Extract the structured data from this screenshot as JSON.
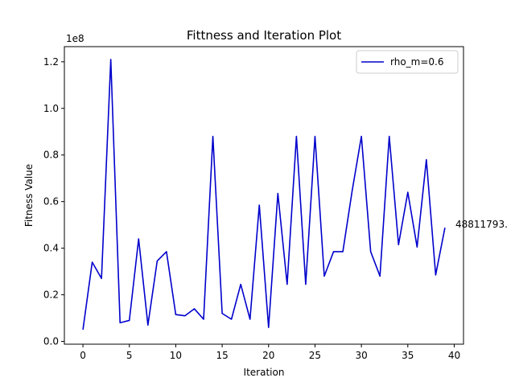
{
  "chart_data": {
    "type": "line",
    "title": "Fittness and Iteration Plot",
    "xlabel": "Iteration",
    "ylabel": "Fitness Value",
    "y_offset_label": "1e8",
    "xlim": [
      -2,
      41
    ],
    "ylim": [
      -0.012,
      1.265
    ],
    "xticks": [
      0,
      5,
      10,
      15,
      20,
      25,
      30,
      35,
      40
    ],
    "xtick_labels": [
      "0",
      "5",
      "10",
      "15",
      "20",
      "25",
      "30",
      "35",
      "40"
    ],
    "yticks": [
      0.0,
      0.2,
      0.4,
      0.6,
      0.8,
      1.0,
      1.2
    ],
    "ytick_labels": [
      "0.0",
      "0.2",
      "0.4",
      "0.6",
      "0.8",
      "1.0",
      "1.2"
    ],
    "grid": false,
    "legend_position": "upper right",
    "series": [
      {
        "name": "rho_m=0.6",
        "color": "#0000cc",
        "x": [
          0,
          1,
          2,
          3,
          4,
          5,
          6,
          7,
          8,
          9,
          10,
          11,
          12,
          13,
          14,
          15,
          16,
          17,
          18,
          19,
          20,
          21,
          22,
          23,
          24,
          25,
          26,
          27,
          28,
          29,
          30,
          31,
          32,
          33,
          34,
          35,
          36,
          37,
          38,
          39
        ],
        "y": [
          0.05,
          0.34,
          0.27,
          1.21,
          0.08,
          0.09,
          0.44,
          0.07,
          0.345,
          0.385,
          0.115,
          0.11,
          0.14,
          0.095,
          0.88,
          0.12,
          0.095,
          0.245,
          0.095,
          0.585,
          0.06,
          0.635,
          0.245,
          0.88,
          0.245,
          0.88,
          0.28,
          0.385,
          0.385,
          0.645,
          0.88,
          0.385,
          0.28,
          0.88,
          0.415,
          0.64,
          0.405,
          0.78,
          0.285,
          0.488
        ]
      }
    ],
    "annotation": "48811793."
  }
}
